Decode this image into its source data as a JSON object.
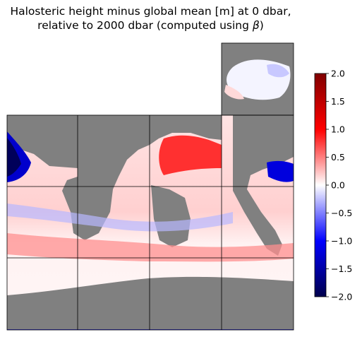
{
  "chart_data": {
    "type": "heatmap",
    "title_line1": "Halosteric height minus global mean [m] at 0 dbar,",
    "title_line2_prefix": "relative to 2000 dbar (computed using ",
    "title_symbol": "β",
    "title_line2_suffix": ")",
    "colorbar": {
      "range": [
        -2.0,
        2.0
      ],
      "ticks": [
        "2.0",
        "1.5",
        "1.0",
        "0.5",
        "0.0",
        "−0.5",
        "−1.0",
        "−1.5",
        "−2.0"
      ],
      "colormap": "seismic"
    },
    "colors": {
      "land": "#808080",
      "strong_positive": "#8b0000",
      "positive": "#ff0000",
      "neutral": "#ffffff",
      "negative": "#0000ff",
      "strong_negative": "#00004c"
    }
  }
}
